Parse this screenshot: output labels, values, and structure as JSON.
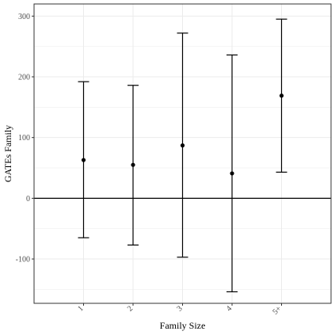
{
  "chart_data": {
    "type": "errorbar",
    "title": "",
    "xlabel": "Family Size",
    "ylabel": "GATEs Family",
    "categories": [
      "1",
      "2",
      "3",
      "4",
      "5+"
    ],
    "estimates": [
      63,
      55,
      87,
      41,
      169
    ],
    "lower": [
      -65,
      -77,
      -97,
      -154,
      43
    ],
    "upper": [
      192,
      186,
      272,
      236,
      295
    ],
    "ylim": [
      -173,
      320
    ],
    "y_ticks": [
      -100,
      0,
      100,
      200,
      300
    ],
    "reference_line_y": 0,
    "grid": true,
    "legend": "none",
    "colors": {
      "marks": "#000000",
      "grid": "#ebebeb",
      "panel_border": "#333333",
      "tick_label": "#4d4d4d"
    }
  }
}
